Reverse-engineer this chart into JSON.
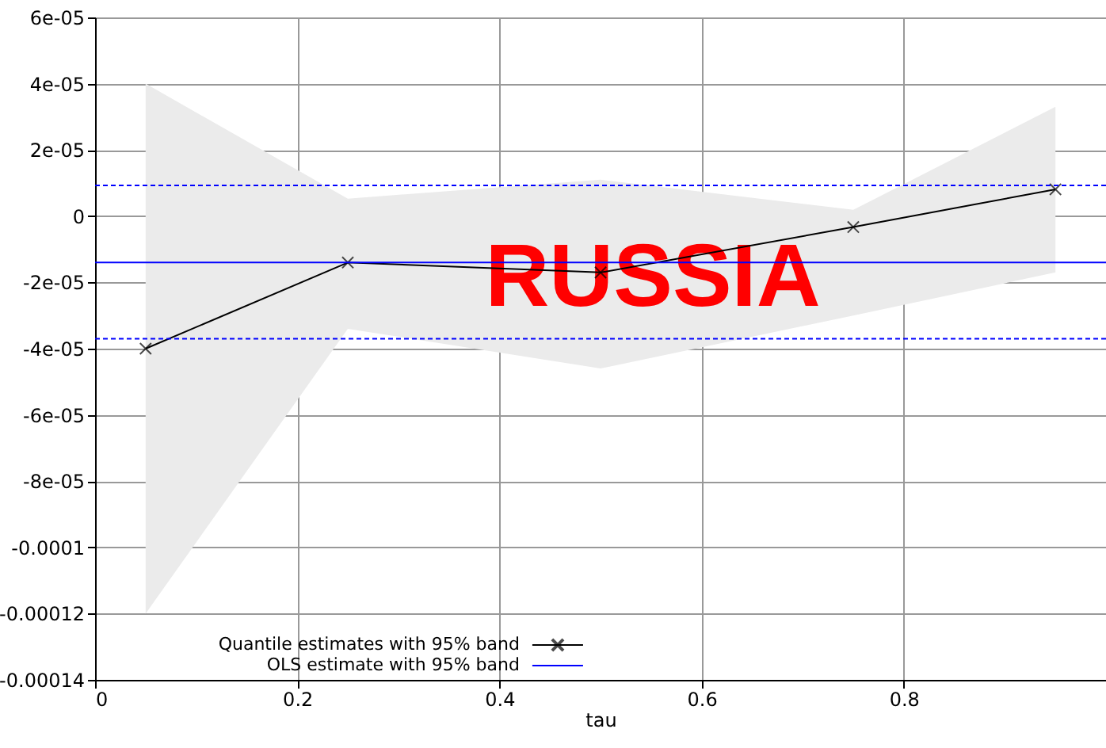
{
  "chart_data": {
    "type": "line",
    "xlabel": "tau",
    "annotations": [
      "RUSSIA"
    ],
    "xlim": [
      0,
      1
    ],
    "xticks": [
      0,
      0.2,
      0.4,
      0.6,
      0.8
    ],
    "ylim": [
      -0.00014,
      6e-05
    ],
    "yticks": [
      {
        "value": 6e-05,
        "label": "6e-05"
      },
      {
        "value": 4e-05,
        "label": "4e-05"
      },
      {
        "value": 2e-05,
        "label": "2e-05"
      },
      0,
      {
        "value": -2e-05,
        "label": "-2e-05"
      },
      {
        "value": -4e-05,
        "label": "-4e-05"
      },
      {
        "value": -6e-05,
        "label": "-6e-05"
      },
      {
        "value": -8e-05,
        "label": "-8e-05"
      },
      {
        "value": -0.0001,
        "label": "-0.0001"
      },
      {
        "value": -0.00012,
        "label": "-0.00012"
      },
      {
        "value": -0.00014,
        "label": "-0.00014"
      }
    ],
    "grid": true,
    "legend": "bottom",
    "series": [
      {
        "name": "Quantile estimates with 95% band",
        "color": "#000000",
        "marker": "cross",
        "x": [
          0.05,
          0.25,
          0.5,
          0.75,
          0.95
        ],
        "values": [
          -4e-05,
          -1.4e-05,
          -1.7e-05,
          -3.3e-06,
          8.1e-06
        ],
        "lower": [
          -0.00012,
          -3.4e-05,
          -4.6e-05,
          -3e-05,
          -1.7e-05
        ],
        "upper": [
          4e-05,
          5.3e-06,
          1.1e-05,
          1.9e-06,
          3.3e-05
        ]
      },
      {
        "name": "OLS estimate with 95% band",
        "color": "#0000ff",
        "marker": "none",
        "x": [
          0,
          1
        ],
        "values": [
          -1.4e-05,
          -1.4e-05
        ]
      }
    ],
    "ref_lines": [
      {
        "axis": "y",
        "value": 9.3e-06,
        "color": "#0000ff",
        "line_style": "dashed"
      },
      {
        "axis": "y",
        "value": -3.7e-05,
        "color": "#0000ff",
        "line_style": "dashed"
      }
    ]
  }
}
